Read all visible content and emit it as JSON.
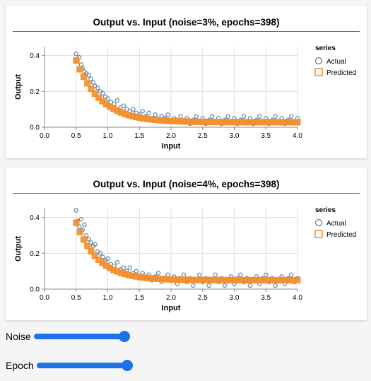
{
  "chart_data": [
    {
      "type": "scatter",
      "title": "Output vs. Input (noise=3%, epochs=398)",
      "xlabel": "Input",
      "ylabel": "Output",
      "xlim": [
        0.0,
        4.0
      ],
      "ylim": [
        0.0,
        0.45
      ],
      "xticks": [
        "0.0",
        "0.5",
        "1.0",
        "1.5",
        "2.0",
        "2.5",
        "3.0",
        "3.5",
        "4.0"
      ],
      "yticks": [
        "0.0",
        "0.2",
        "0.4"
      ],
      "legend": {
        "title": "series",
        "position": "right"
      },
      "series": [
        {
          "name": "Actual",
          "marker": "circle",
          "color": "#5a7fa8",
          "points": [
            [
              0.5,
              0.41
            ],
            [
              0.52,
              0.37
            ],
            [
              0.55,
              0.39
            ],
            [
              0.58,
              0.35
            ],
            [
              0.6,
              0.33
            ],
            [
              0.63,
              0.31
            ],
            [
              0.66,
              0.3
            ],
            [
              0.7,
              0.29
            ],
            [
              0.73,
              0.27
            ],
            [
              0.77,
              0.25
            ],
            [
              0.8,
              0.23
            ],
            [
              0.84,
              0.22
            ],
            [
              0.88,
              0.2
            ],
            [
              0.92,
              0.19
            ],
            [
              0.96,
              0.17
            ],
            [
              1.0,
              0.16
            ],
            [
              1.05,
              0.14
            ],
            [
              1.1,
              0.13
            ],
            [
              1.15,
              0.15
            ],
            [
              1.2,
              0.11
            ],
            [
              1.25,
              0.12
            ],
            [
              1.3,
              0.1
            ],
            [
              1.35,
              0.09
            ],
            [
              1.4,
              0.1
            ],
            [
              1.45,
              0.08
            ],
            [
              1.5,
              0.07
            ],
            [
              1.55,
              0.09
            ],
            [
              1.6,
              0.06
            ],
            [
              1.65,
              0.08
            ],
            [
              1.7,
              0.05
            ],
            [
              1.75,
              0.07
            ],
            [
              1.8,
              0.04
            ],
            [
              1.85,
              0.06
            ],
            [
              1.9,
              0.05
            ],
            [
              1.95,
              0.07
            ],
            [
              2.0,
              0.03
            ],
            [
              2.05,
              0.05
            ],
            [
              2.1,
              0.04
            ],
            [
              2.15,
              0.06
            ],
            [
              2.2,
              0.03
            ],
            [
              2.25,
              0.05
            ],
            [
              2.3,
              0.02
            ],
            [
              2.35,
              0.04
            ],
            [
              2.4,
              0.06
            ],
            [
              2.45,
              0.03
            ],
            [
              2.5,
              0.05
            ],
            [
              2.55,
              0.02
            ],
            [
              2.6,
              0.04
            ],
            [
              2.65,
              0.06
            ],
            [
              2.7,
              0.03
            ],
            [
              2.75,
              0.05
            ],
            [
              2.8,
              0.02
            ],
            [
              2.85,
              0.04
            ],
            [
              2.9,
              0.06
            ],
            [
              2.95,
              0.03
            ],
            [
              3.0,
              0.05
            ],
            [
              3.05,
              0.02
            ],
            [
              3.1,
              0.04
            ],
            [
              3.15,
              0.06
            ],
            [
              3.2,
              0.03
            ],
            [
              3.25,
              0.05
            ],
            [
              3.3,
              0.02
            ],
            [
              3.35,
              0.04
            ],
            [
              3.4,
              0.06
            ],
            [
              3.45,
              0.03
            ],
            [
              3.5,
              0.05
            ],
            [
              3.55,
              0.02
            ],
            [
              3.6,
              0.04
            ],
            [
              3.65,
              0.06
            ],
            [
              3.7,
              0.03
            ],
            [
              3.75,
              0.05
            ],
            [
              3.8,
              0.02
            ],
            [
              3.85,
              0.04
            ],
            [
              3.9,
              0.06
            ],
            [
              3.95,
              0.03
            ],
            [
              4.0,
              0.05
            ]
          ]
        },
        {
          "name": "Predicted",
          "marker": "square",
          "color": "#f28e2b",
          "model": {
            "a": 0.028,
            "b": 0.345,
            "k": 2.6,
            "x0": 0.5,
            "x1": 4.0,
            "n": 60
          }
        }
      ]
    },
    {
      "type": "scatter",
      "title": "Output vs. Input (noise=4%, epochs=398)",
      "xlabel": "Input",
      "ylabel": "Output",
      "xlim": [
        0.0,
        4.0
      ],
      "ylim": [
        0.0,
        0.45
      ],
      "xticks": [
        "0.0",
        "0.5",
        "1.0",
        "1.5",
        "2.0",
        "2.5",
        "3.0",
        "3.5",
        "4.0"
      ],
      "yticks": [
        "0.0",
        "0.2",
        "0.4"
      ],
      "legend": {
        "title": "series",
        "position": "right"
      },
      "series": [
        {
          "name": "Actual",
          "marker": "circle",
          "color": "#5a7fa8",
          "points": [
            [
              0.5,
              0.44
            ],
            [
              0.52,
              0.38
            ],
            [
              0.55,
              0.35
            ],
            [
              0.58,
              0.39
            ],
            [
              0.6,
              0.33
            ],
            [
              0.63,
              0.36
            ],
            [
              0.66,
              0.3
            ],
            [
              0.7,
              0.28
            ],
            [
              0.73,
              0.26
            ],
            [
              0.77,
              0.24
            ],
            [
              0.8,
              0.25
            ],
            [
              0.84,
              0.21
            ],
            [
              0.88,
              0.2
            ],
            [
              0.92,
              0.18
            ],
            [
              0.96,
              0.16
            ],
            [
              1.0,
              0.17
            ],
            [
              1.05,
              0.14
            ],
            [
              1.1,
              0.13
            ],
            [
              1.15,
              0.15
            ],
            [
              1.2,
              0.11
            ],
            [
              1.25,
              0.12
            ],
            [
              1.3,
              0.1
            ],
            [
              1.35,
              0.12
            ],
            [
              1.4,
              0.09
            ],
            [
              1.45,
              0.1
            ],
            [
              1.5,
              0.07
            ],
            [
              1.55,
              0.09
            ],
            [
              1.6,
              0.06
            ],
            [
              1.65,
              0.08
            ],
            [
              1.7,
              0.05
            ],
            [
              1.75,
              0.07
            ],
            [
              1.8,
              0.09
            ],
            [
              1.85,
              0.04
            ],
            [
              1.9,
              0.06
            ],
            [
              1.95,
              0.08
            ],
            [
              2.0,
              0.05
            ],
            [
              2.05,
              0.07
            ],
            [
              2.1,
              0.03
            ],
            [
              2.15,
              0.06
            ],
            [
              2.2,
              0.08
            ],
            [
              2.25,
              0.04
            ],
            [
              2.3,
              0.06
            ],
            [
              2.35,
              0.02
            ],
            [
              2.4,
              0.05
            ],
            [
              2.45,
              0.08
            ],
            [
              2.5,
              0.04
            ],
            [
              2.55,
              0.06
            ],
            [
              2.6,
              0.02
            ],
            [
              2.65,
              0.05
            ],
            [
              2.7,
              0.08
            ],
            [
              2.75,
              0.04
            ],
            [
              2.8,
              0.06
            ],
            [
              2.85,
              0.02
            ],
            [
              2.9,
              0.05
            ],
            [
              2.95,
              0.07
            ],
            [
              3.0,
              0.03
            ],
            [
              3.05,
              0.06
            ],
            [
              3.1,
              0.08
            ],
            [
              3.15,
              0.04
            ],
            [
              3.2,
              0.06
            ],
            [
              3.25,
              0.02
            ],
            [
              3.3,
              0.05
            ],
            [
              3.35,
              0.07
            ],
            [
              3.4,
              0.03
            ],
            [
              3.45,
              0.06
            ],
            [
              3.5,
              0.08
            ],
            [
              3.55,
              0.04
            ],
            [
              3.6,
              0.06
            ],
            [
              3.65,
              0.02
            ],
            [
              3.7,
              0.05
            ],
            [
              3.75,
              0.07
            ],
            [
              3.8,
              0.03
            ],
            [
              3.85,
              0.06
            ],
            [
              3.9,
              0.08
            ],
            [
              3.95,
              0.04
            ],
            [
              4.0,
              0.06
            ]
          ]
        },
        {
          "name": "Predicted",
          "marker": "square",
          "color": "#f28e2b",
          "model": {
            "a": 0.05,
            "b": 0.32,
            "k": 2.9,
            "x0": 0.5,
            "x1": 4.0,
            "n": 60
          }
        }
      ]
    }
  ],
  "controls": {
    "noise": {
      "label": "Noise",
      "value": 1.0
    },
    "epoch": {
      "label": "Epoch",
      "value": 1.0
    }
  },
  "colors": {
    "slider": "#1a73e8",
    "title_rule": "#3a6fb5",
    "grid": "#dddddd"
  }
}
